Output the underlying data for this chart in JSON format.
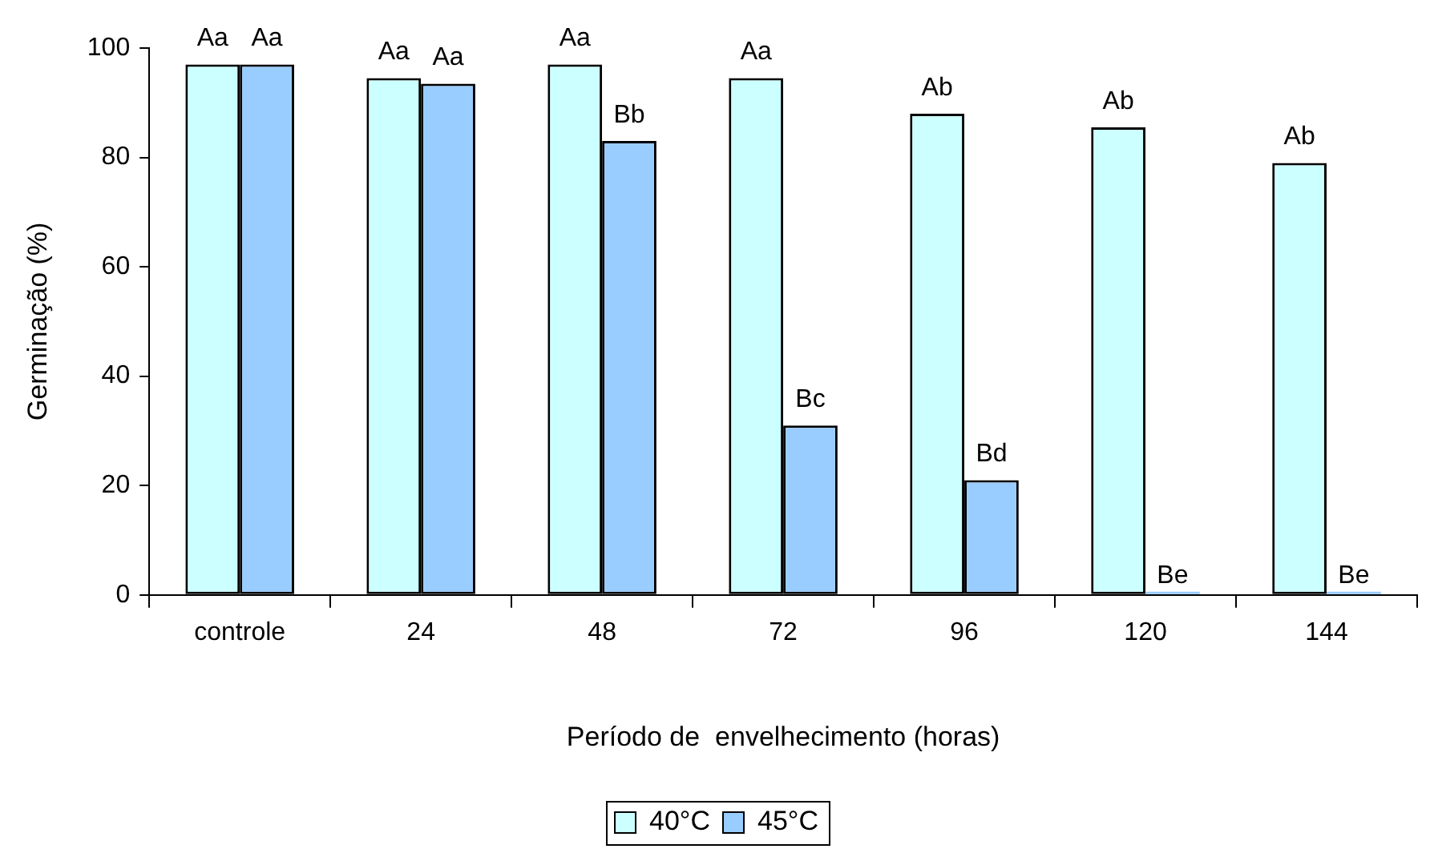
{
  "chart_data": {
    "type": "bar",
    "xlabel": "Período de  envelhecimento (horas)",
    "ylabel": "Germinação (%)",
    "categories": [
      "controle",
      "24",
      "48",
      "72",
      "96",
      "120",
      "144"
    ],
    "series": [
      {
        "name": "40°C",
        "color": "#ccffff",
        "values": [
          97,
          94.5,
          97,
          94.5,
          88,
          85.5,
          79
        ],
        "value_labels": [
          "Aa",
          "Aa",
          "Aa",
          "Aa",
          "Ab",
          "Ab",
          "Ab"
        ]
      },
      {
        "name": "45°C",
        "color": "#99ccff",
        "values": [
          97,
          93.5,
          83,
          31,
          21,
          0,
          0
        ],
        "value_labels": [
          "Aa",
          "Aa",
          "Bb",
          "Bc",
          "Bd",
          "Be",
          "Be"
        ]
      }
    ],
    "ylim": [
      0,
      100
    ],
    "yticks": [
      0,
      20,
      40,
      60,
      80,
      100
    ],
    "grid": false,
    "legend": "bottom"
  }
}
